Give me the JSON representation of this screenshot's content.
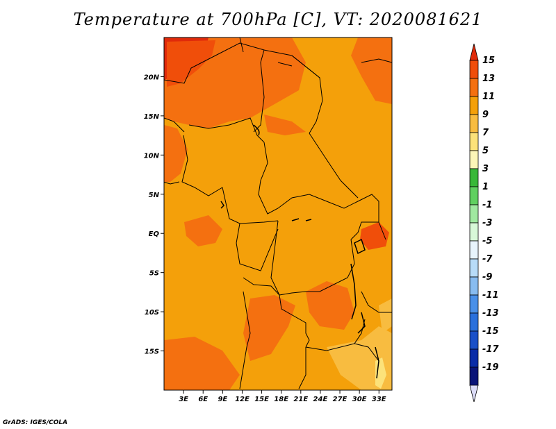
{
  "title": "Temperature at 700hPa [C], VT: 2020081621",
  "credit": "GrADS: IGES/COLA",
  "map": {
    "lon_range": [
      0,
      35
    ],
    "lat_range": [
      -20,
      25
    ],
    "lat_ticks": [
      {
        "value": 20,
        "label": "20N"
      },
      {
        "value": 15,
        "label": "15N"
      },
      {
        "value": 10,
        "label": "10N"
      },
      {
        "value": 5,
        "label": "5N"
      },
      {
        "value": 0,
        "label": "EQ"
      },
      {
        "value": -5,
        "label": "5S"
      },
      {
        "value": -10,
        "label": "10S"
      },
      {
        "value": -15,
        "label": "15S"
      }
    ],
    "lon_ticks": [
      {
        "value": 3,
        "label": "3E"
      },
      {
        "value": 6,
        "label": "6E"
      },
      {
        "value": 9,
        "label": "9E"
      },
      {
        "value": 12,
        "label": "12E"
      },
      {
        "value": 15,
        "label": "15E"
      },
      {
        "value": 18,
        "label": "18E"
      },
      {
        "value": 21,
        "label": "21E"
      },
      {
        "value": 24,
        "label": "24E"
      },
      {
        "value": 27,
        "label": "27E"
      },
      {
        "value": 30,
        "label": "30E"
      },
      {
        "value": 33,
        "label": "33E"
      }
    ],
    "background_color": "#f4a00a"
  },
  "colorbar": {
    "labels": [
      "15",
      "13",
      "11",
      "9",
      "7",
      "5",
      "3",
      "1",
      "-1",
      "-3",
      "-5",
      "-7",
      "-9",
      "-11",
      "-13",
      "-15",
      "-17",
      "-19"
    ],
    "colors": [
      "#e02a0a",
      "#f04e0a",
      "#f47010",
      "#f4a00a",
      "#f8bc40",
      "#fce27a",
      "#fcf6b8",
      "#38b838",
      "#60d060",
      "#a0e8a0",
      "#d8f8d8",
      "#e8f4fc",
      "#b8dcf8",
      "#88bcf0",
      "#4a90e8",
      "#2a70dc",
      "#1a50c8",
      "#0a2ca8",
      "#0a1478",
      "#dcdcf8"
    ]
  }
}
